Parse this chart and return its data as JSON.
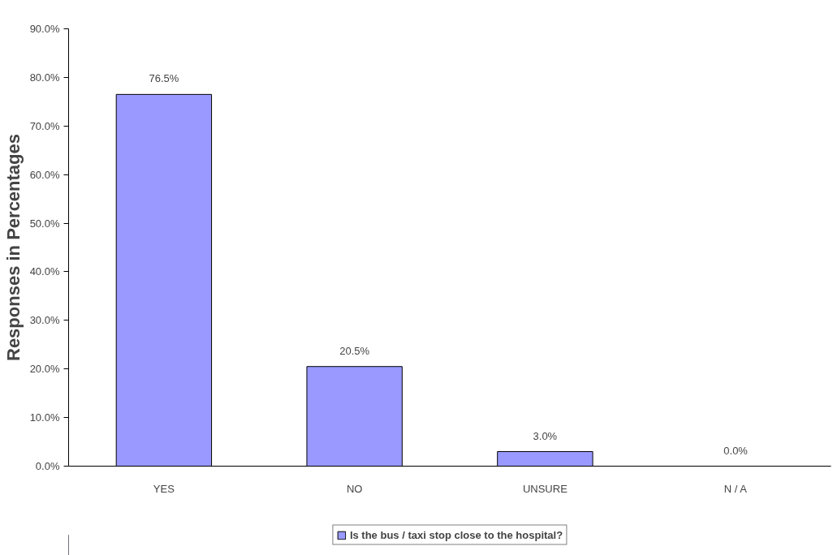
{
  "chart_data": {
    "type": "bar",
    "ylabel": "Responses in Percentages",
    "categories": [
      "YES",
      "NO",
      "UNSURE",
      "N / A"
    ],
    "series": [
      {
        "name": "Is the bus / taxi stop close to the hospital?",
        "color": "#9999ff",
        "values": [
          76.5,
          20.5,
          3.0,
          0.0
        ],
        "value_labels": [
          "76.5%",
          "20.5%",
          "3.0%",
          "0.0%"
        ]
      }
    ],
    "ylim": [
      0,
      90
    ],
    "yticks": [
      {
        "value": 0,
        "label": "0.0%"
      },
      {
        "value": 10,
        "label": "10.0%"
      },
      {
        "value": 20,
        "label": "20.0%"
      },
      {
        "value": 30,
        "label": "30.0%"
      },
      {
        "value": 40,
        "label": "40.0%"
      },
      {
        "value": 50,
        "label": "50.0%"
      },
      {
        "value": 60,
        "label": "60.0%"
      },
      {
        "value": 70,
        "label": "70.0%"
      },
      {
        "value": 80,
        "label": "80.0%"
      },
      {
        "value": 90,
        "label": "90.0%"
      }
    ],
    "grid": false,
    "legend": "bottom"
  }
}
